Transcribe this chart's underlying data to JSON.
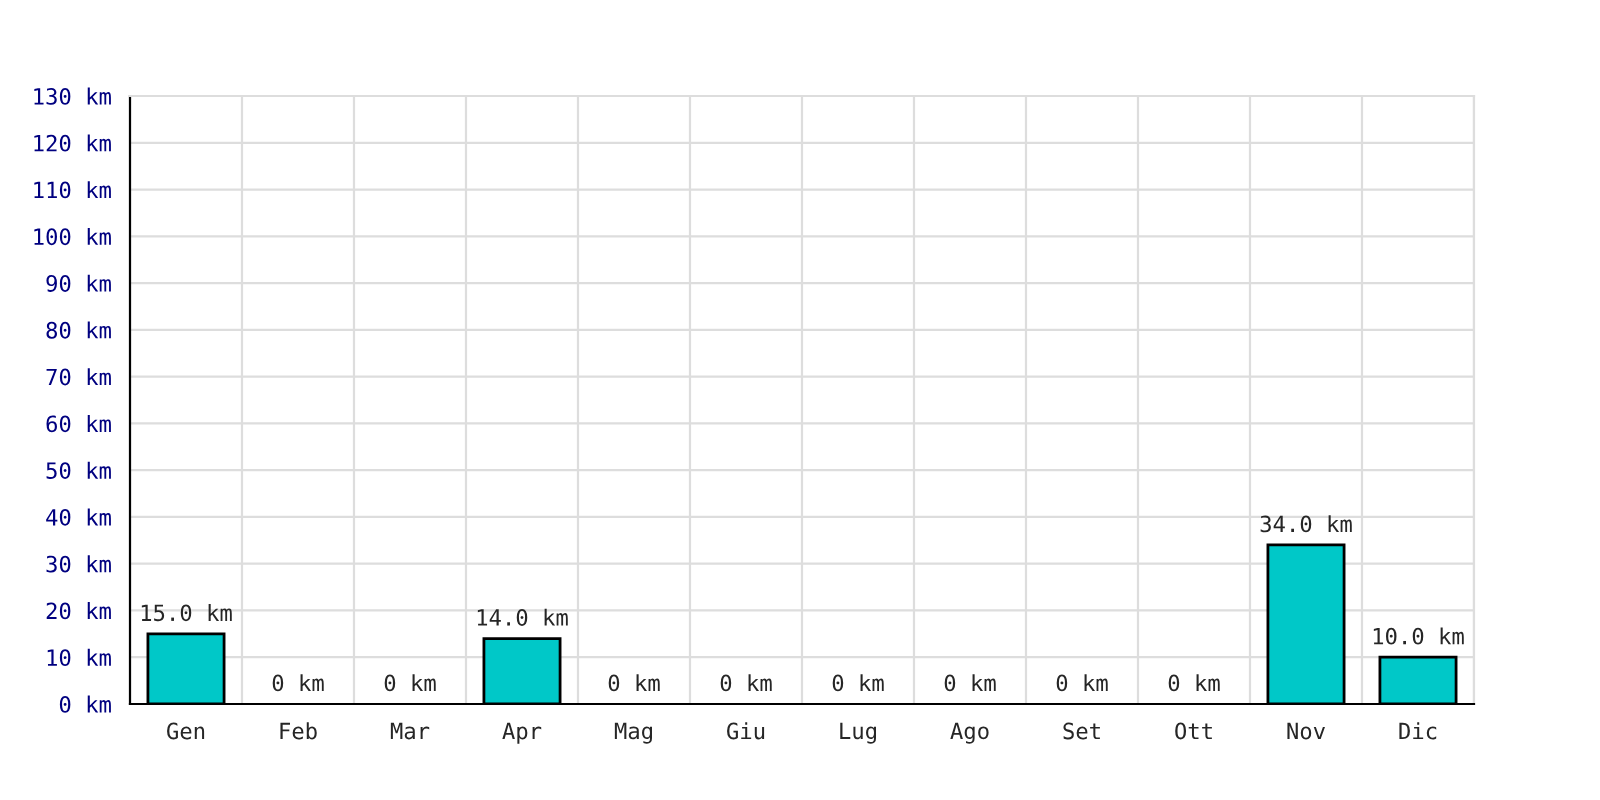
{
  "chart_data": {
    "type": "bar",
    "categories": [
      "Gen",
      "Feb",
      "Mar",
      "Apr",
      "Mag",
      "Giu",
      "Lug",
      "Ago",
      "Set",
      "Ott",
      "Nov",
      "Dic"
    ],
    "values": [
      15,
      0,
      0,
      14,
      0,
      0,
      0,
      0,
      0,
      0,
      34,
      10
    ],
    "value_labels": [
      "15.0 km",
      "0 km",
      "0 km",
      "14.0 km",
      "0 km",
      "0 km",
      "0 km",
      "0 km",
      "0 km",
      "0 km",
      "34.0 km",
      "10.0 km"
    ],
    "color": "#00c8c8",
    "ylim": [
      0,
      130
    ],
    "yticks": [
      {
        "value": 0,
        "label": "0 km"
      },
      {
        "value": 10,
        "label": "10 km"
      },
      {
        "value": 20,
        "label": "20 km"
      },
      {
        "value": 30,
        "label": "30 km"
      },
      {
        "value": 40,
        "label": "40 km"
      },
      {
        "value": 50,
        "label": "50 km"
      },
      {
        "value": 60,
        "label": "60 km"
      },
      {
        "value": 70,
        "label": "70 km"
      },
      {
        "value": 80,
        "label": "80 km"
      },
      {
        "value": 90,
        "label": "90 km"
      },
      {
        "value": 100,
        "label": "100 km"
      },
      {
        "value": 110,
        "label": "110 km"
      },
      {
        "value": 120,
        "label": "120 km"
      },
      {
        "value": 130,
        "label": "130 km"
      }
    ],
    "grid": true
  }
}
